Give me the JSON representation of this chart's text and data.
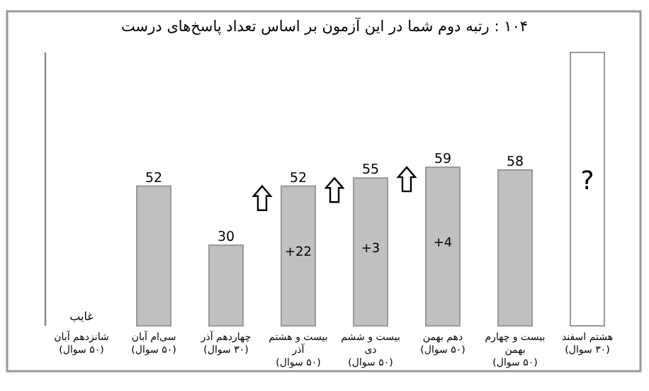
{
  "chart_data": {
    "type": "bar",
    "title": "۱۰۴ : رتبه دوم شما در این آزمون بر اساس تعداد پاسخ‌های درست",
    "categories": [
      "شانزدهم آبان (۵۰ سوال)",
      "سی‌ام آبان (۵۰ سوال)",
      "چهاردهم آذر (۳۰ سوال)",
      "بیست و هشتم آذر (۵۰ سوال)",
      "بیست و ششم دی (۵۰ سوال)",
      "دهم بهمن (۵۰ سوال)",
      "بیست و چهارم بهمن (۵۰ سوال)",
      "هشتم اسفند (۳۰ سوال)"
    ],
    "values": [
      null,
      52,
      30,
      52,
      55,
      59,
      58,
      null
    ],
    "color": "#c0c0c0",
    "value_labels": [
      "غایب",
      "52",
      "30",
      "52",
      "55",
      "59",
      "58",
      "?"
    ],
    "bands": [
      {
        "axis": "x",
        "from": "هشتم اسفند (۳۰ سوال)",
        "to": "هشتم اسفند (۳۰ سوال)",
        "color": "#ffffff"
      }
    ],
    "annotations": [
      "+22",
      "+3",
      "+4"
    ]
  }
}
